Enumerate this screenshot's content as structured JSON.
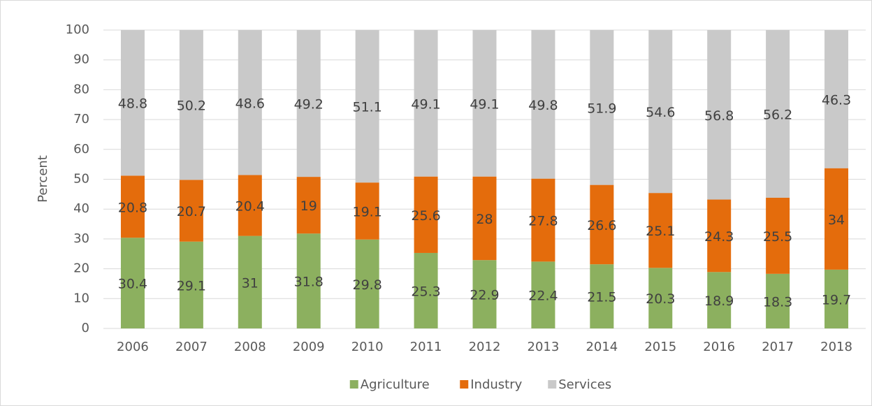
{
  "chart_data": {
    "type": "stacked_bar",
    "y_label": "Percent",
    "categories": [
      "2006",
      "2007",
      "2008",
      "2009",
      "2010",
      "2011",
      "2012",
      "2013",
      "2014",
      "2015",
      "2016",
      "2017",
      "2018"
    ],
    "series": [
      {
        "name": "Agriculture",
        "color": "#8cb05f",
        "values": [
          30.4,
          29.1,
          31,
          31.8,
          29.8,
          25.3,
          22.9,
          22.4,
          21.5,
          20.3,
          18.9,
          18.3,
          19.7
        ]
      },
      {
        "name": "Industry",
        "color": "#e46c0c",
        "values": [
          20.8,
          20.7,
          20.4,
          19,
          19.1,
          25.6,
          28,
          27.8,
          26.6,
          25.1,
          24.3,
          25.5,
          34
        ]
      },
      {
        "name": "Services",
        "color": "#c9c9c9",
        "values": [
          48.8,
          50.2,
          48.6,
          49.2,
          51.1,
          49.1,
          49.1,
          49.8,
          51.9,
          54.6,
          56.8,
          56.2,
          46.3
        ]
      }
    ],
    "ylim": [
      0,
      100
    ],
    "yticks": [
      0,
      10,
      20,
      30,
      40,
      50,
      60,
      70,
      80,
      90,
      100
    ],
    "grid": true,
    "legend": "bottom"
  }
}
